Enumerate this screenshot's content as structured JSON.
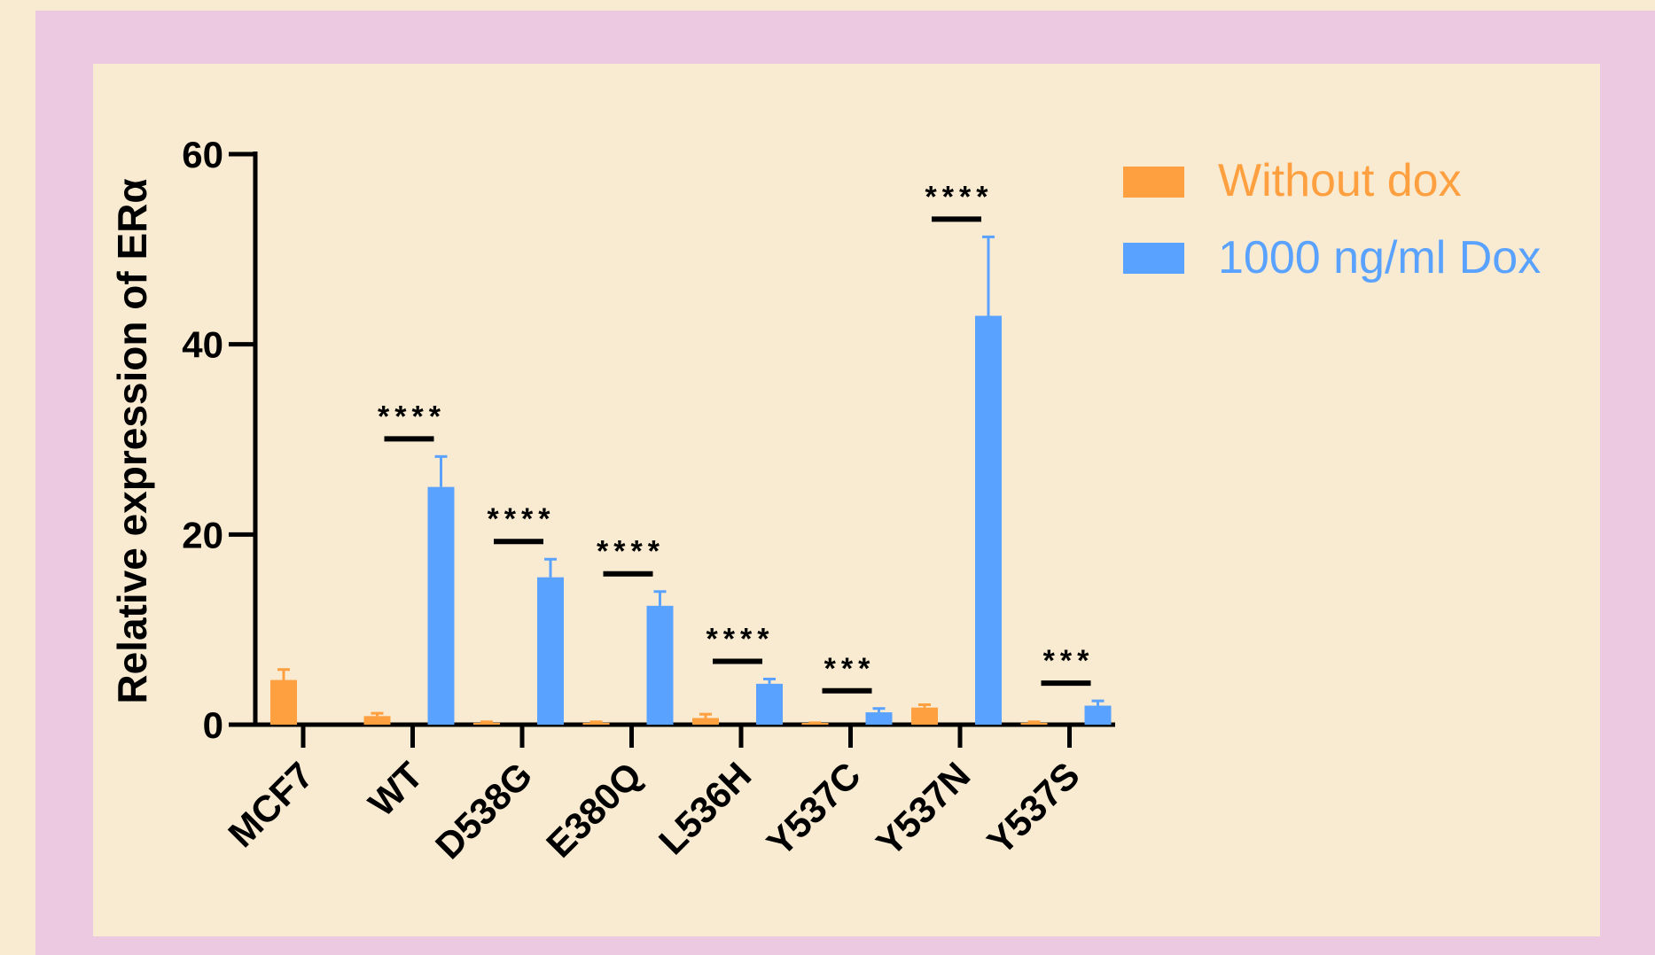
{
  "chart_data": {
    "type": "bar",
    "title": "",
    "xlabel": "",
    "ylabel": "Relative expression of ERα",
    "ylim": [
      0,
      60
    ],
    "yticks": [
      0,
      20,
      40,
      60
    ],
    "categories": [
      "MCF7",
      "WT",
      "D538G",
      "E380Q",
      "L536H",
      "Y537C",
      "Y537N",
      "Y537S"
    ],
    "series": [
      {
        "name": "Without dox",
        "color": "#ffa040",
        "values": [
          4.7,
          0.9,
          0.2,
          0.2,
          0.7,
          0.1,
          1.8,
          0.2
        ],
        "errors": [
          1.1,
          0.3,
          0.1,
          0.1,
          0.4,
          0.1,
          0.3,
          0.1
        ]
      },
      {
        "name": "1000 ng/ml Dox",
        "color": "#5aa2ff",
        "values": [
          null,
          25.0,
          15.5,
          12.5,
          4.3,
          1.3,
          43.0,
          2.0
        ],
        "errors": [
          null,
          3.2,
          1.9,
          1.5,
          0.5,
          0.4,
          8.3,
          0.5
        ]
      }
    ],
    "significance": [
      "",
      "****",
      "****",
      "****",
      "****",
      "***",
      "****",
      "***"
    ],
    "legend_position": "top-right",
    "grid": false
  }
}
